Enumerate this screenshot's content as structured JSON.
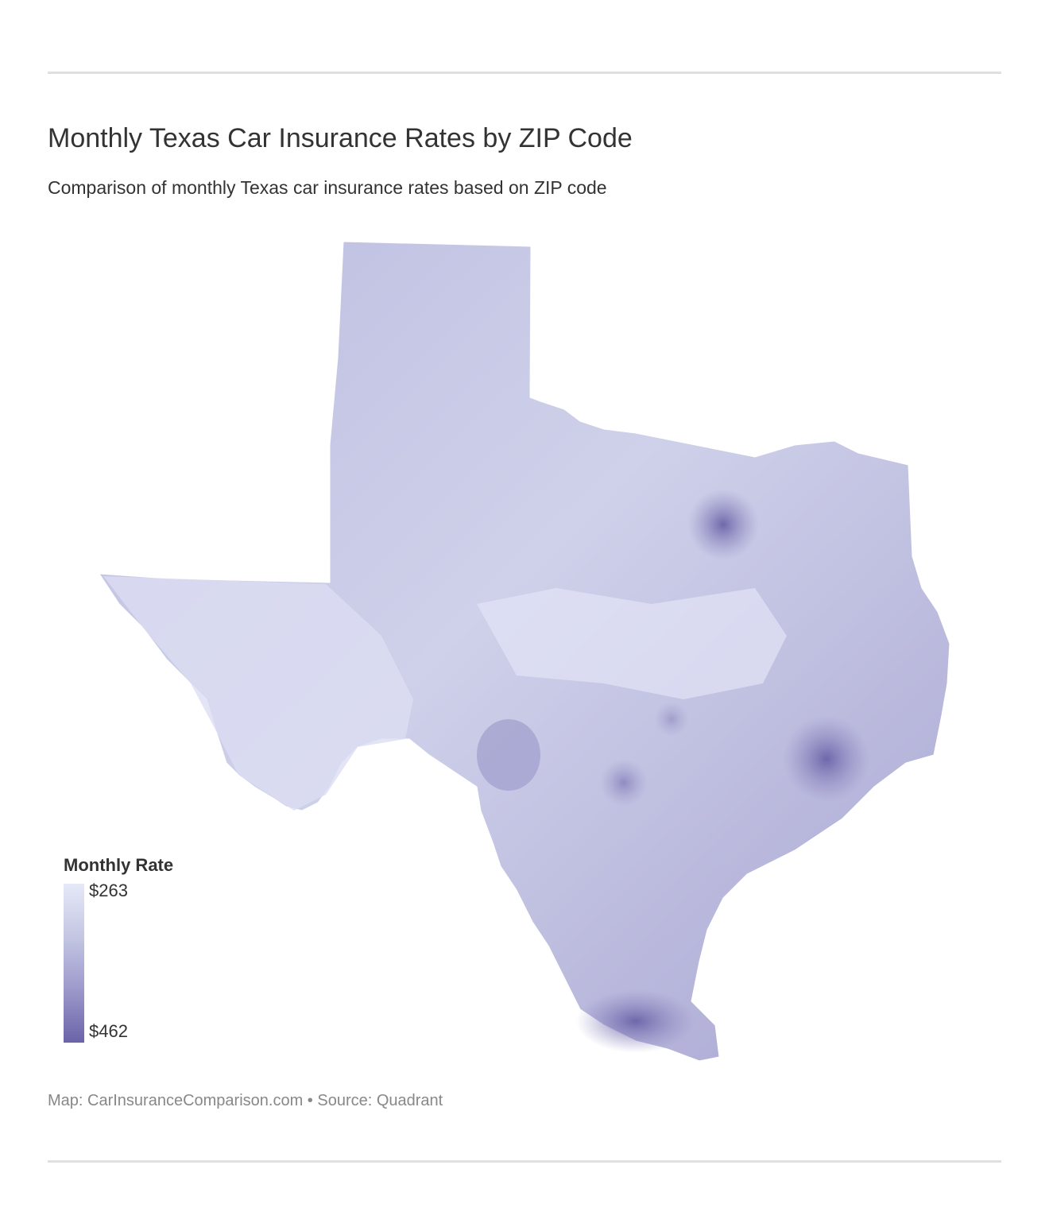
{
  "title": "Monthly Texas Car Insurance Rates by ZIP Code",
  "subtitle": "Comparison of monthly Texas car insurance rates based on ZIP code",
  "legend": {
    "title": "Monthly Rate",
    "min_label": "$263",
    "max_label": "$462",
    "min_value": 263,
    "max_value": 462,
    "color_low": "#e6e9f8",
    "color_high": "#6a63a8"
  },
  "footer": "Map: CarInsuranceComparison.com • Source: Quadrant"
}
